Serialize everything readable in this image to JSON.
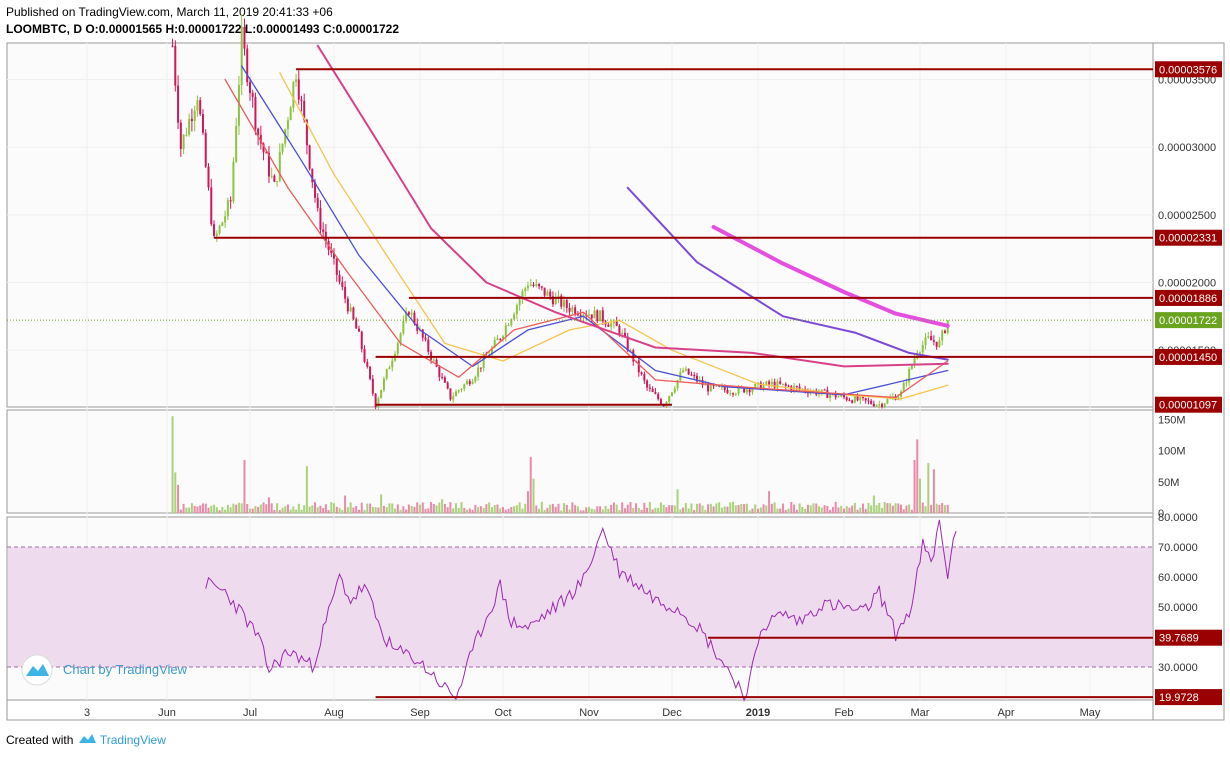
{
  "header": {
    "published": "Published on TradingView.com, March 11, 2019 20:41:33 +06",
    "symbol": "LOOMBTC, D",
    "ohlc": [
      {
        "k": "O:",
        "v": "0.00001565"
      },
      {
        "k": "H:",
        "v": "0.00001722"
      },
      {
        "k": "L:",
        "v": "0.00001493"
      },
      {
        "k": "C:",
        "v": "0.00001722"
      }
    ]
  },
  "footer": {
    "created_with": "Created with",
    "brand": "TradingView"
  },
  "watermark": "Chart by TradingView",
  "colors": {
    "up": "#8cc43f",
    "down": "#d0165a",
    "level": "#9b0000",
    "last_price": "#6aa31e",
    "rsi_line": "#9c27b0",
    "rsi_band": "#eedcee",
    "ma_orange": "#f7c44d",
    "ma_blue": "#4a4fd6",
    "ma_red": "#ee5a5a",
    "ma_pink": "#d8418a",
    "ma_purple": "#7e4ad8",
    "ma_magenta": "#e54fe0"
  },
  "chart_data": {
    "type": "candlestick",
    "x_ticks": [
      "3",
      "Jun",
      "Jul",
      "Aug",
      "Sep",
      "Oct",
      "Nov",
      "Dec",
      "2019",
      "Feb",
      "Mar",
      "Apr",
      "May"
    ],
    "price_axis": {
      "ticks": [
        "0.00003500",
        "0.00003000",
        "0.00002500",
        "0.00002000",
        "0.00001500"
      ],
      "tick_values": [
        3.5e-05,
        3e-05,
        2.5e-05,
        2e-05,
        1.5e-05
      ],
      "range": [
        1.08e-05,
        3.77e-05
      ]
    },
    "horizontal_levels": [
      {
        "label": "0.00003576",
        "value": 3.576e-05,
        "from": "2018-07-18"
      },
      {
        "label": "0.00002331",
        "value": 2.331e-05,
        "from": "2018-06-18"
      },
      {
        "label": "0.00001886",
        "value": 1.886e-05,
        "from": "2018-08-28"
      },
      {
        "label": "0.00001450",
        "value": 1.45e-05,
        "from": "2018-08-16"
      },
      {
        "label": "0.00001097",
        "value": 1.097e-05,
        "from": "2018-08-16",
        "to": "2018-12-01"
      }
    ],
    "last_price": {
      "label": "0.00001722",
      "value": 1.722e-05
    },
    "price_path": [
      [
        "2018-06-03",
        3.75e-05
      ],
      [
        "2018-06-06",
        3e-05
      ],
      [
        "2018-06-12",
        3.4e-05
      ],
      [
        "2018-06-18",
        2.3e-05
      ],
      [
        "2018-06-24",
        2.6e-05
      ],
      [
        "2018-06-28",
        3.8e-05
      ],
      [
        "2018-07-04",
        3.1e-05
      ],
      [
        "2018-07-10",
        2.7e-05
      ],
      [
        "2018-07-18",
        3.57e-05
      ],
      [
        "2018-07-26",
        2.5e-05
      ],
      [
        "2018-08-03",
        2e-05
      ],
      [
        "2018-08-10",
        1.6e-05
      ],
      [
        "2018-08-16",
        1.1e-05
      ],
      [
        "2018-08-22",
        1.45e-05
      ],
      [
        "2018-08-28",
        1.8e-05
      ],
      [
        "2018-09-04",
        1.5e-05
      ],
      [
        "2018-09-12",
        1.15e-05
      ],
      [
        "2018-09-20",
        1.3e-05
      ],
      [
        "2018-09-30",
        1.6e-05
      ],
      [
        "2018-10-10",
        2e-05
      ],
      [
        "2018-10-14",
        1.95e-05
      ],
      [
        "2018-10-24",
        1.82e-05
      ],
      [
        "2018-11-05",
        1.75e-05
      ],
      [
        "2018-11-12",
        1.65e-05
      ],
      [
        "2018-11-22",
        1.22e-05
      ],
      [
        "2018-11-28",
        1.1e-05
      ],
      [
        "2018-12-05",
        1.35e-05
      ],
      [
        "2018-12-14",
        1.22e-05
      ],
      [
        "2018-12-24",
        1.2e-05
      ],
      [
        "2019-01-06",
        1.25e-05
      ],
      [
        "2019-01-20",
        1.2e-05
      ],
      [
        "2019-02-01",
        1.15e-05
      ],
      [
        "2019-02-14",
        1.1e-05
      ],
      [
        "2019-02-22",
        1.18e-05
      ],
      [
        "2019-02-28",
        1.5e-05
      ],
      [
        "2019-03-04",
        1.58e-05
      ],
      [
        "2019-03-08",
        1.55e-05
      ],
      [
        "2019-03-11",
        1.72e-05
      ]
    ],
    "moving_averages": [
      {
        "color": "#f7c44d",
        "points": [
          [
            "2018-07-12",
            3.55e-05
          ],
          [
            "2018-08-01",
            2.8e-05
          ],
          [
            "2018-08-20",
            2.2e-05
          ],
          [
            "2018-09-10",
            1.55e-05
          ],
          [
            "2018-10-01",
            1.42e-05
          ],
          [
            "2018-10-25",
            1.65e-05
          ],
          [
            "2018-11-12",
            1.72e-05
          ],
          [
            "2018-12-01",
            1.5e-05
          ],
          [
            "2019-01-01",
            1.25e-05
          ],
          [
            "2019-02-01",
            1.17e-05
          ],
          [
            "2019-02-22",
            1.14e-05
          ],
          [
            "2019-03-11",
            1.24e-05
          ]
        ]
      },
      {
        "color": "#4a4fd6",
        "points": [
          [
            "2018-06-28",
            3.6e-05
          ],
          [
            "2018-07-20",
            2.9e-05
          ],
          [
            "2018-08-10",
            2.2e-05
          ],
          [
            "2018-09-01",
            1.65e-05
          ],
          [
            "2018-09-20",
            1.38e-05
          ],
          [
            "2018-10-10",
            1.65e-05
          ],
          [
            "2018-10-30",
            1.75e-05
          ],
          [
            "2018-11-25",
            1.35e-05
          ],
          [
            "2018-12-20",
            1.23e-05
          ],
          [
            "2019-02-01",
            1.17e-05
          ],
          [
            "2019-03-11",
            1.35e-05
          ]
        ]
      },
      {
        "color": "#ee5a5a",
        "points": [
          [
            "2018-06-22",
            3.5e-05
          ],
          [
            "2018-07-15",
            2.7e-05
          ],
          [
            "2018-08-05",
            2.1e-05
          ],
          [
            "2018-08-25",
            1.55e-05
          ],
          [
            "2018-09-15",
            1.3e-05
          ],
          [
            "2018-10-05",
            1.65e-05
          ],
          [
            "2018-10-30",
            1.78e-05
          ],
          [
            "2018-11-25",
            1.28e-05
          ],
          [
            "2019-01-01",
            1.22e-05
          ],
          [
            "2019-02-20",
            1.15e-05
          ],
          [
            "2019-03-11",
            1.42e-05
          ]
        ]
      },
      {
        "color": "#d8418a",
        "points": [
          [
            "2018-07-26",
            3.75e-05
          ],
          [
            "2018-08-15",
            3.1e-05
          ],
          [
            "2018-09-05",
            2.4e-05
          ],
          [
            "2018-09-25",
            2e-05
          ],
          [
            "2018-10-20",
            1.78e-05
          ],
          [
            "2018-11-25",
            1.52e-05
          ],
          [
            "2018-12-30",
            1.48e-05
          ],
          [
            "2019-02-01",
            1.38e-05
          ],
          [
            "2019-03-11",
            1.4e-05
          ]
        ]
      },
      {
        "color": "#7e4ad8",
        "points": [
          [
            "2018-11-15",
            2.7e-05
          ],
          [
            "2018-12-10",
            2.15e-05
          ],
          [
            "2019-01-10",
            1.75e-05
          ],
          [
            "2019-02-05",
            1.63e-05
          ],
          [
            "2019-02-25",
            1.48e-05
          ],
          [
            "2019-03-11",
            1.43e-05
          ]
        ]
      },
      {
        "color": "#e54fe0",
        "points": [
          [
            "2018-12-16",
            2.41e-05
          ],
          [
            "2019-01-10",
            2.14e-05
          ],
          [
            "2019-02-01",
            1.93e-05
          ],
          [
            "2019-02-20",
            1.77e-05
          ],
          [
            "2019-03-11",
            1.68e-05
          ]
        ]
      }
    ],
    "volume_axis": {
      "ticks": [
        "150M",
        "100M",
        "50M",
        "0"
      ],
      "tick_values": [
        150,
        100,
        50,
        0
      ],
      "range": [
        0,
        165
      ]
    },
    "volume_spikes": [
      [
        "2018-06-03",
        155
      ],
      [
        "2018-06-04",
        65
      ],
      [
        "2018-06-05",
        45
      ],
      [
        "2018-06-29",
        85
      ],
      [
        "2018-07-08",
        25
      ],
      [
        "2018-07-22",
        75
      ],
      [
        "2018-08-05",
        28
      ],
      [
        "2018-08-18",
        30
      ],
      [
        "2018-09-09",
        22
      ],
      [
        "2018-10-10",
        35
      ],
      [
        "2018-10-11",
        90
      ],
      [
        "2018-10-12",
        55
      ],
      [
        "2018-12-03",
        38
      ],
      [
        "2019-01-05",
        35
      ],
      [
        "2019-02-12",
        28
      ],
      [
        "2019-02-27",
        85
      ],
      [
        "2019-02-28",
        118
      ],
      [
        "2019-03-01",
        55
      ],
      [
        "2019-03-04",
        80
      ],
      [
        "2019-03-06",
        70
      ]
    ],
    "rsi_axis": {
      "ticks": [
        "80.0000",
        "70.0000",
        "60.0000",
        "50.0000",
        "30.0000"
      ],
      "tick_values": [
        80,
        70,
        60,
        50,
        30
      ],
      "range": [
        19,
        80
      ],
      "band": [
        30,
        70
      ]
    },
    "rsi_levels": [
      {
        "label": "39.7689",
        "value": 39.7689,
        "from": "2018-12-14"
      },
      {
        "label": "19.9728",
        "value": 19.9728,
        "from": "2018-08-16"
      }
    ],
    "rsi_path": [
      [
        "2018-06-15",
        58
      ],
      [
        "2018-06-22",
        55
      ],
      [
        "2018-06-28",
        48
      ],
      [
        "2018-07-04",
        40
      ],
      [
        "2018-07-08",
        29
      ],
      [
        "2018-07-15",
        35
      ],
      [
        "2018-07-20",
        33
      ],
      [
        "2018-07-24",
        30
      ],
      [
        "2018-07-29",
        45
      ],
      [
        "2018-08-03",
        60
      ],
      [
        "2018-08-07",
        52
      ],
      [
        "2018-08-12",
        57
      ],
      [
        "2018-08-18",
        42
      ],
      [
        "2018-08-22",
        36
      ],
      [
        "2018-08-30",
        33
      ],
      [
        "2018-09-05",
        28
      ],
      [
        "2018-09-10",
        23
      ],
      [
        "2018-09-14",
        20
      ],
      [
        "2018-09-22",
        40
      ],
      [
        "2018-09-30",
        57
      ],
      [
        "2018-10-04",
        45
      ],
      [
        "2018-10-10",
        43
      ],
      [
        "2018-10-17",
        48
      ],
      [
        "2018-10-24",
        53
      ],
      [
        "2018-10-30",
        59
      ],
      [
        "2018-11-06",
        76
      ],
      [
        "2018-11-12",
        62
      ],
      [
        "2018-11-18",
        58
      ],
      [
        "2018-11-26",
        52
      ],
      [
        "2018-12-03",
        50
      ],
      [
        "2018-12-10",
        44
      ],
      [
        "2018-12-16",
        36
      ],
      [
        "2018-12-22",
        28
      ],
      [
        "2018-12-28",
        20
      ],
      [
        "2019-01-02",
        43
      ],
      [
        "2019-01-10",
        48
      ],
      [
        "2019-01-16",
        45
      ],
      [
        "2019-01-24",
        51
      ],
      [
        "2019-02-01",
        50
      ],
      [
        "2019-02-08",
        48
      ],
      [
        "2019-02-14",
        55
      ],
      [
        "2019-02-20",
        41
      ],
      [
        "2019-02-26",
        50
      ],
      [
        "2019-03-02",
        71
      ],
      [
        "2019-03-05",
        64
      ],
      [
        "2019-03-08",
        78
      ],
      [
        "2019-03-11",
        61
      ],
      [
        "2019-03-14",
        75
      ]
    ]
  }
}
